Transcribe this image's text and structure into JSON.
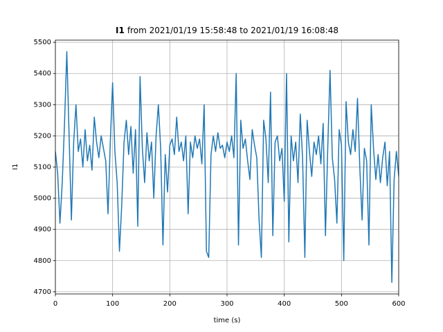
{
  "chart_data": {
    "type": "line",
    "title": [
      "I1",
      "from 2021/01/19 15:58:48 to 2021/01/19 16:08:48"
    ],
    "xlabel": "time (s)",
    "ylabel": "I1",
    "xlim": [
      0,
      600
    ],
    "ylim": [
      4693,
      5507
    ],
    "xticks": [
      0,
      100,
      200,
      300,
      400,
      500,
      600
    ],
    "yticks": [
      4700,
      4800,
      4900,
      5000,
      5100,
      5200,
      5300,
      5400,
      5500
    ],
    "grid": true,
    "x": [
      0,
      4,
      8,
      12,
      16,
      20,
      24,
      28,
      32,
      36,
      40,
      44,
      48,
      52,
      56,
      60,
      64,
      68,
      72,
      76,
      80,
      84,
      88,
      92,
      96,
      100,
      104,
      108,
      112,
      116,
      120,
      124,
      128,
      132,
      136,
      140,
      144,
      148,
      152,
      156,
      160,
      164,
      168,
      172,
      176,
      180,
      184,
      188,
      192,
      196,
      200,
      204,
      208,
      212,
      216,
      220,
      224,
      228,
      232,
      236,
      240,
      244,
      248,
      252,
      256,
      260,
      264,
      268,
      272,
      276,
      280,
      284,
      288,
      292,
      296,
      300,
      304,
      308,
      312,
      316,
      320,
      324,
      328,
      332,
      336,
      340,
      344,
      348,
      352,
      356,
      360,
      364,
      368,
      372,
      376,
      380,
      384,
      388,
      392,
      396,
      400,
      404,
      408,
      412,
      416,
      420,
      424,
      428,
      432,
      436,
      440,
      444,
      448,
      452,
      456,
      460,
      464,
      468,
      472,
      476,
      480,
      484,
      488,
      492,
      496,
      500,
      504,
      508,
      512,
      516,
      520,
      524,
      528,
      532,
      536,
      540,
      544,
      548,
      552,
      556,
      560,
      564,
      568,
      572,
      576,
      580,
      584,
      588,
      592,
      596,
      600
    ],
    "series": [
      {
        "color": "#1f77b4",
        "values": [
          5150,
          5080,
          4920,
          5050,
          5240,
          5470,
          5200,
          4930,
          5180,
          5300,
          5150,
          5190,
          5100,
          5220,
          5120,
          5170,
          5090,
          5260,
          5180,
          5130,
          5200,
          5160,
          5120,
          4950,
          5180,
          5370,
          5150,
          5050,
          4830,
          4980,
          5180,
          5250,
          5140,
          5230,
          5080,
          5220,
          4910,
          5390,
          5160,
          5050,
          5210,
          5120,
          5180,
          5000,
          5200,
          5300,
          5160,
          4850,
          5140,
          5020,
          5170,
          5190,
          5140,
          5260,
          5150,
          5180,
          5120,
          5200,
          4950,
          5180,
          5130,
          5200,
          5160,
          5190,
          5110,
          5300,
          4830,
          4810,
          5140,
          5200,
          5150,
          5210,
          5160,
          5170,
          5130,
          5180,
          5150,
          5200,
          5130,
          5400,
          4850,
          5250,
          5160,
          5190,
          5120,
          5060,
          5220,
          5170,
          5130,
          4930,
          4810,
          5250,
          5190,
          5050,
          5340,
          4880,
          5180,
          5200,
          5120,
          5160,
          4990,
          5400,
          4860,
          5200,
          5120,
          5180,
          5050,
          5270,
          5130,
          4810,
          5250,
          5150,
          5070,
          5180,
          5140,
          5200,
          5110,
          5240,
          4880,
          5160,
          5410,
          5130,
          5060,
          4920,
          5220,
          5170,
          4800,
          5310,
          5180,
          5140,
          5220,
          5150,
          5320,
          5100,
          4930,
          5160,
          5120,
          4850,
          5300,
          5160,
          5060,
          5140,
          5050,
          5130,
          5180,
          5040,
          5150,
          4730,
          5060,
          5150,
          5070
        ]
      }
    ]
  }
}
